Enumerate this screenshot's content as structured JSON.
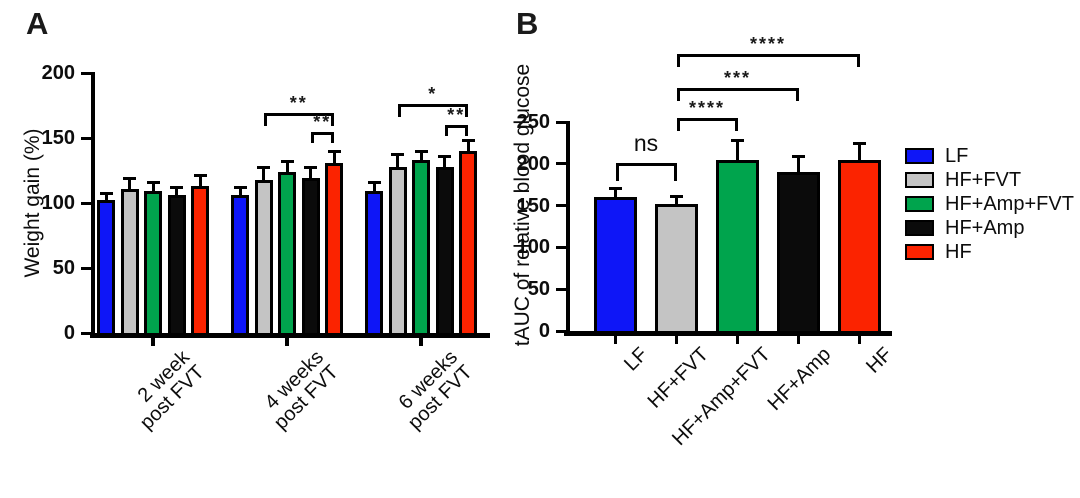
{
  "panels": {
    "a": {
      "letter": "A"
    },
    "b": {
      "letter": "B"
    }
  },
  "chart_data": [
    {
      "panel": "A",
      "type": "bar",
      "title": "",
      "xlabel": "",
      "ylabel": "Weight gain (%)",
      "ylim": [
        0,
        200
      ],
      "yticks": [
        0,
        50,
        100,
        150,
        200
      ],
      "grid": false,
      "error_bars": "upper SEM",
      "categories": [
        "2 week\npost FVT",
        "4 weeks\npost FVT",
        "6 weeks\npost FVT"
      ],
      "series": [
        {
          "name": "LF",
          "color": "#0e16f7",
          "values": [
            102,
            106,
            109
          ],
          "errors_plus": [
            5,
            6,
            7
          ]
        },
        {
          "name": "HF+FVT",
          "color": "#c4c4c4",
          "values": [
            111,
            118,
            128
          ],
          "errors_plus": [
            8,
            9,
            9
          ]
        },
        {
          "name": "HF+Amp+FVT",
          "color": "#00a44d",
          "values": [
            109,
            124,
            133
          ],
          "errors_plus": [
            7,
            8,
            7
          ]
        },
        {
          "name": "HF+Amp",
          "color": "#0b0b0b",
          "values": [
            106,
            119,
            128
          ],
          "errors_plus": [
            6,
            8,
            8
          ]
        },
        {
          "name": "HF",
          "color": "#fb2300",
          "values": [
            113,
            131,
            140
          ],
          "errors_plus": [
            8,
            9,
            8
          ]
        }
      ],
      "significance": [
        {
          "category_index": 1,
          "from": "HF+FVT",
          "to": "HF",
          "label": "**"
        },
        {
          "category_index": 1,
          "from": "HF+Amp",
          "to": "HF",
          "label": "**"
        },
        {
          "category_index": 2,
          "from": "HF+FVT",
          "to": "HF",
          "label": "*"
        },
        {
          "category_index": 2,
          "from": "HF+Amp",
          "to": "HF",
          "label": "**"
        }
      ]
    },
    {
      "panel": "B",
      "type": "bar",
      "title": "",
      "xlabel": "",
      "ylabel": "tAUC of relative blood glucose",
      "ylim": [
        0,
        250
      ],
      "yticks": [
        0,
        50,
        100,
        150,
        200,
        250
      ],
      "grid": false,
      "error_bars": "upper SEM",
      "categories": [
        "LF",
        "HF+FVT",
        "HF+Amp+FVT",
        "HF+Amp",
        "HF"
      ],
      "values": [
        160,
        152,
        205,
        190,
        204
      ],
      "errors_plus": [
        11,
        9,
        23,
        19,
        20
      ],
      "colors": [
        "#0e16f7",
        "#c4c4c4",
        "#00a44d",
        "#0b0b0b",
        "#fb2300"
      ],
      "significance": [
        {
          "from": "LF",
          "to": "HF+FVT",
          "label": "ns"
        },
        {
          "from": "HF+FVT",
          "to": "HF+Amp+FVT",
          "label": "****"
        },
        {
          "from": "HF+FVT",
          "to": "HF+Amp",
          "label": "***"
        },
        {
          "from": "HF+FVT",
          "to": "HF",
          "label": "****"
        }
      ],
      "legend": {
        "position": "right",
        "entries": [
          {
            "label": "LF",
            "color": "#0e16f7"
          },
          {
            "label": "HF+FVT",
            "color": "#c4c4c4"
          },
          {
            "label": "HF+Amp+FVT",
            "color": "#00a44d"
          },
          {
            "label": "HF+Amp",
            "color": "#0b0b0b"
          },
          {
            "label": "HF",
            "color": "#fb2300"
          }
        ]
      }
    }
  ]
}
